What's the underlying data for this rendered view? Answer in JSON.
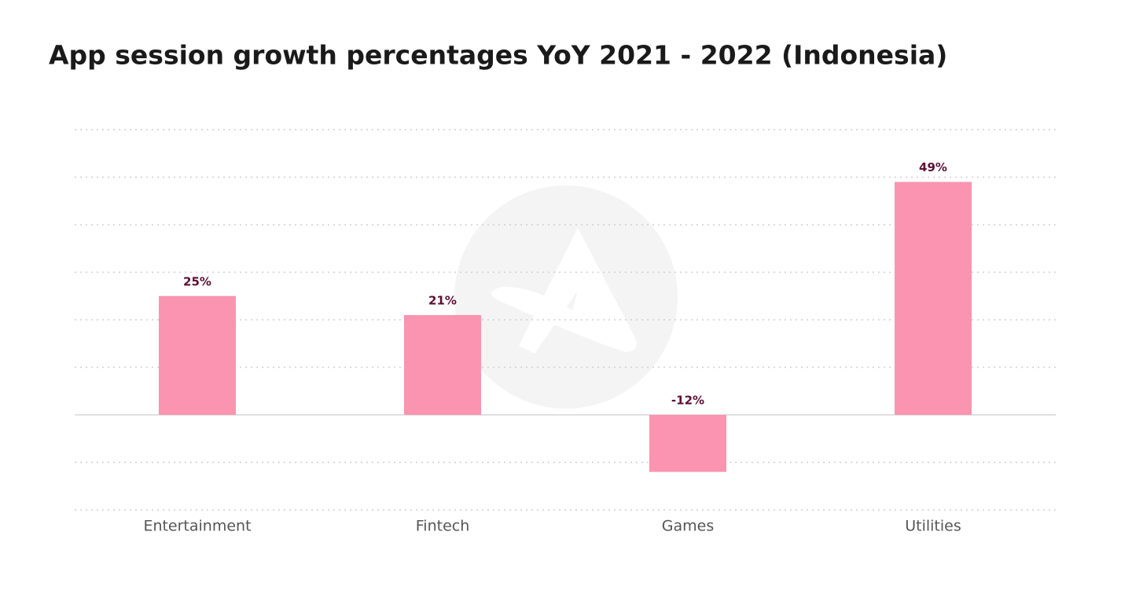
{
  "chart_data": {
    "type": "bar",
    "title": "App session growth percentages YoY 2021 - 2022 (Indonesia)",
    "categories": [
      "Entertainment",
      "Fintech",
      "Games",
      "Utilities"
    ],
    "values": [
      25,
      21,
      -12,
      49
    ],
    "value_labels": [
      "25%",
      "21%",
      "-12%",
      "49%"
    ],
    "color": "#fa94b0",
    "ylim": [
      -20,
      60
    ],
    "yticks": [
      -20,
      -10,
      0,
      10,
      20,
      30,
      40,
      50,
      60
    ],
    "show_tick_labels": false,
    "grid": true
  }
}
